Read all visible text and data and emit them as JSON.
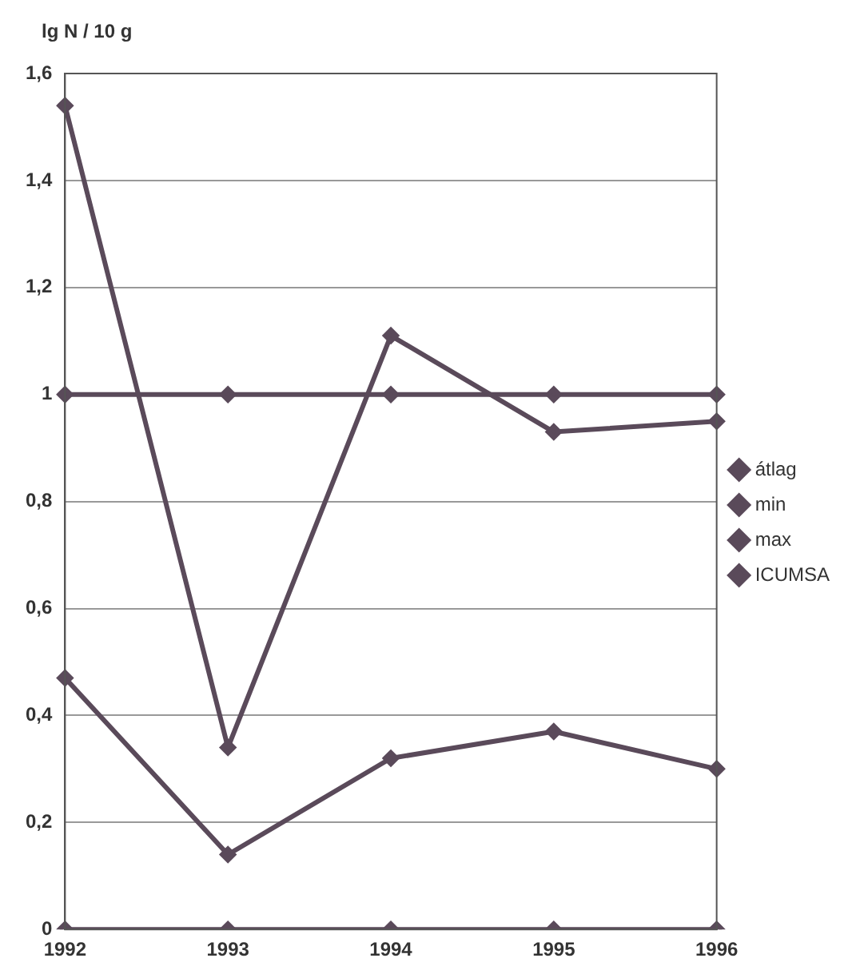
{
  "chart_data": {
    "type": "line",
    "ylabel": "lg N / 10 g",
    "categories": [
      "1992",
      "1993",
      "1994",
      "1995",
      "1996"
    ],
    "series": [
      {
        "name": "átlag",
        "color": "#5a4a5a",
        "values": [
          0.47,
          0.14,
          0.32,
          0.37,
          0.3
        ]
      },
      {
        "name": "min",
        "color": "#5a4a5a",
        "values": [
          0,
          0,
          0,
          0,
          0
        ]
      },
      {
        "name": "max",
        "color": "#5a4a5a",
        "values": [
          1.54,
          0.34,
          1.11,
          0.93,
          0.95
        ]
      },
      {
        "name": "ICUMSA",
        "color": "#5a4a5a",
        "values": [
          1,
          1,
          1,
          1,
          1
        ]
      }
    ],
    "ylim": [
      0,
      1.6
    ],
    "yticks": [
      0,
      {
        "value": 0.2,
        "label": "0,2"
      },
      {
        "value": 0.4,
        "label": "0,4"
      },
      {
        "value": 0.6,
        "label": "0,6"
      },
      {
        "value": 0.8,
        "label": "0,8"
      },
      1,
      {
        "value": 1.2,
        "label": "1,2"
      },
      {
        "value": 1.4,
        "label": "1,4"
      },
      {
        "value": 1.6,
        "label": "1,6"
      }
    ],
    "grid": "y",
    "legend": "right",
    "marker": "diamond",
    "line_style": "solid"
  }
}
